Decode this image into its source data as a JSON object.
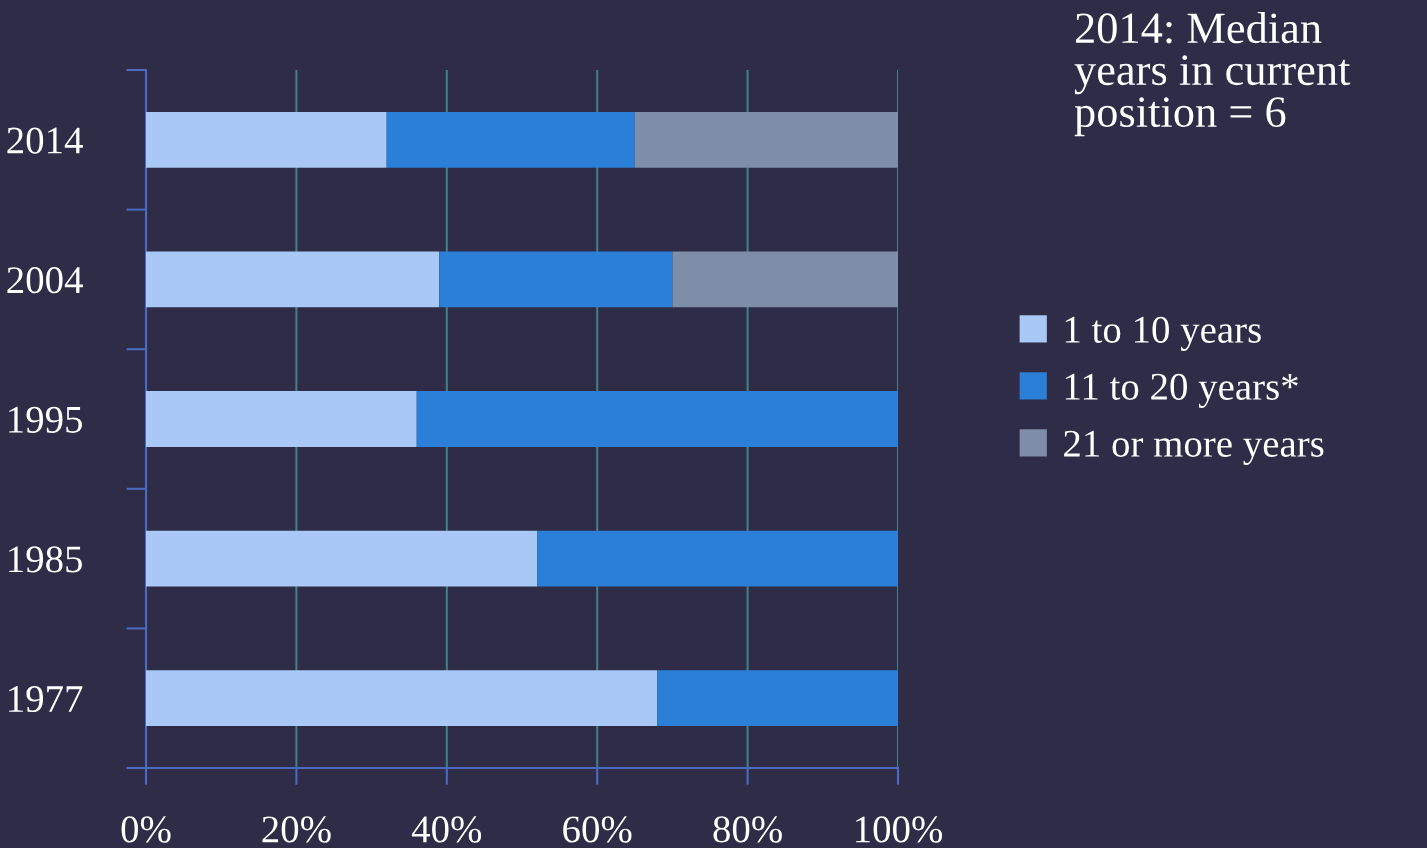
{
  "chart_data": {
    "type": "bar",
    "orientation": "horizontal",
    "stacked": true,
    "categories": [
      "2014",
      "2004",
      "1995",
      "1985",
      "1977"
    ],
    "series": [
      {
        "name": "1 to 10 years",
        "color": "#a9c8f5",
        "values": [
          32,
          39,
          36,
          52,
          68
        ]
      },
      {
        "name": "11 to 20 years*",
        "color": "#2b7fd6",
        "values": [
          33,
          31,
          64,
          48,
          32
        ]
      },
      {
        "name": "21 or more years",
        "color": "#7e8ea8",
        "values": [
          35,
          30,
          null,
          null,
          null
        ]
      }
    ],
    "xlim": [
      0,
      100
    ],
    "xticks": [
      {
        "value": 0,
        "label": "0%"
      },
      {
        "value": 20,
        "label": "20%"
      },
      {
        "value": 40,
        "label": "40%"
      },
      {
        "value": 60,
        "label": "60%"
      },
      {
        "value": 80,
        "label": "80%"
      },
      {
        "value": 100,
        "label": "100%"
      }
    ],
    "grid": "x",
    "legend": "right",
    "annotations": [
      "2014: Median years in current position = 6"
    ]
  }
}
